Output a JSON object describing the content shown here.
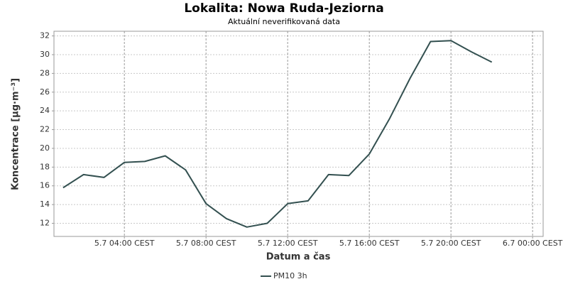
{
  "chart_data": {
    "type": "line",
    "title": "Lokalita: Nowa Ruda-Jeziorna",
    "subtitle": "Aktuální neverifikovaná data",
    "x_label": "Datum a čas",
    "y_label": "Koncentrace [µg·m⁻³]",
    "x": [
      "5.7 01:00 CEST",
      "5.7 02:00 CEST",
      "5.7 03:00 CEST",
      "5.7 04:00 CEST",
      "5.7 05:00 CEST",
      "5.7 06:00 CEST",
      "5.7 07:00 CEST",
      "5.7 08:00 CEST",
      "5.7 09:00 CEST",
      "5.7 10:00 CEST",
      "5.7 11:00 CEST",
      "5.7 12:00 CEST",
      "5.7 13:00 CEST",
      "5.7 14:00 CEST",
      "5.7 15:00 CEST",
      "5.7 16:00 CEST",
      "5.7 17:00 CEST",
      "5.7 18:00 CEST",
      "5.7 19:00 CEST",
      "5.7 20:00 CEST",
      "5.7 21:00 CEST",
      "5.7 22:00 CEST"
    ],
    "series": [
      {
        "name": "PM10 3h",
        "color": "#335050",
        "values": [
          15.8,
          17.2,
          16.9,
          18.5,
          18.6,
          19.2,
          17.7,
          14.1,
          12.5,
          11.6,
          12.0,
          14.1,
          14.4,
          17.2,
          17.1,
          19.4,
          23.2,
          27.5,
          31.4,
          31.5,
          30.3,
          29.2
        ]
      }
    ],
    "xlim": [
      "5.7 00:33 CEST",
      "6.7 00:31 CEST"
    ],
    "xticks": [
      "5.7 04:00 CEST",
      "5.7 08:00 CEST",
      "5.7 12:00 CEST",
      "5.7 16:00 CEST",
      "5.7 20:00 CEST",
      "6.7 00:00 CEST"
    ],
    "ylim": [
      10.6,
      32.5
    ],
    "yticks": [
      12,
      14,
      16,
      18,
      20,
      22,
      24,
      26,
      28,
      30,
      32
    ],
    "grid": true
  }
}
